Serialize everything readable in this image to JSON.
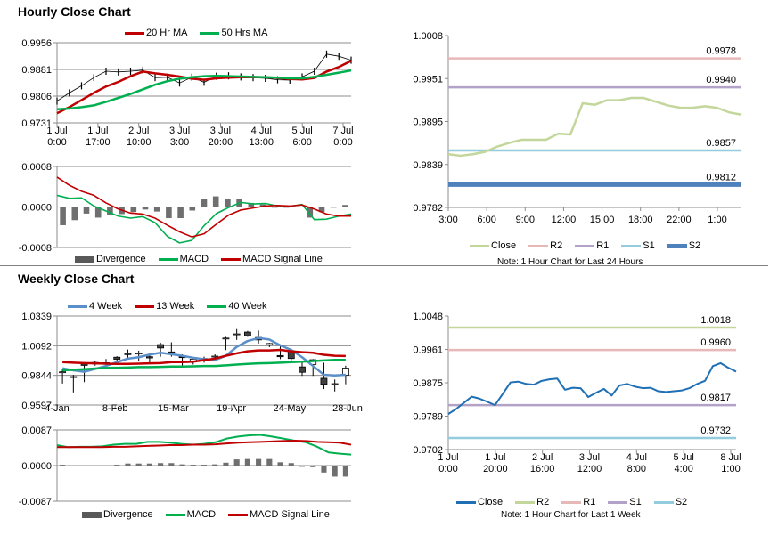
{
  "sections": {
    "hourly_title": "Hourly Close Chart",
    "weekly_title": "Weekly Close Chart"
  },
  "chart_data": [
    {
      "id": "hourly-price",
      "type": "candlestick+line",
      "ylim": [
        0.9731,
        0.9956
      ],
      "yticks": [
        "0.9956",
        "0.9881",
        "0.9806",
        "0.9731"
      ],
      "grid": true,
      "xticks": [
        [
          "1 Jul",
          "0:00"
        ],
        [
          "1 Jul",
          "17:00"
        ],
        [
          "2 Jul",
          "10:00"
        ],
        [
          "3 Jul",
          "3:00"
        ],
        [
          "3 Jul",
          "20:00"
        ],
        [
          "4 Jul",
          "13:00"
        ],
        [
          "5 Jul",
          "6:00"
        ],
        [
          "7 Jul",
          "0:00"
        ]
      ],
      "legend": [
        {
          "label": "20 Hr MA",
          "color": "#c00000",
          "kind": "line"
        },
        {
          "label": "50 Hrs MA",
          "color": "#00b050",
          "kind": "line"
        }
      ],
      "close": [
        0.9792,
        0.9815,
        0.9835,
        0.9858,
        0.9876,
        0.9874,
        0.9876,
        0.9879,
        0.9858,
        0.9859,
        0.9843,
        0.9859,
        0.9845,
        0.9862,
        0.9863,
        0.986,
        0.9858,
        0.9856,
        0.9852,
        0.9851,
        0.986,
        0.9876,
        0.9924,
        0.9918,
        0.9907
      ],
      "series": [
        {
          "name": "20 Hr MA",
          "color": "#c00000",
          "width": 2.5,
          "values": [
            0.9758,
            0.9775,
            0.9795,
            0.9815,
            0.9833,
            0.9846,
            0.9862,
            0.9875,
            0.987,
            0.9866,
            0.9861,
            0.9855,
            0.9852,
            0.9856,
            0.9858,
            0.9859,
            0.9859,
            0.9859,
            0.9857,
            0.9854,
            0.9853,
            0.9857,
            0.9875,
            0.9888,
            0.9905
          ]
        },
        {
          "name": "50 Hrs MA",
          "color": "#00b050",
          "width": 2.5,
          "values": [
            0.9769,
            0.9771,
            0.9775,
            0.978,
            0.979,
            0.9801,
            0.9812,
            0.9825,
            0.9838,
            0.9848,
            0.9855,
            0.9859,
            0.9862,
            0.9863,
            0.9862,
            0.9861,
            0.986,
            0.9859,
            0.9858,
            0.9856,
            0.9856,
            0.986,
            0.9866,
            0.9872,
            0.9878
          ]
        }
      ]
    },
    {
      "id": "hourly-macd",
      "type": "line+bar",
      "ylim": [
        -0.0008,
        0.0008
      ],
      "yticks": [
        "0.0008",
        "0.0000",
        "-0.0008"
      ],
      "grid": true,
      "legend": [
        {
          "label": "Divergence",
          "color": "#595959",
          "kind": "bar"
        },
        {
          "label": "MACD",
          "color": "#00b050",
          "kind": "line"
        },
        {
          "label": "MACD Signal Line",
          "color": "#c00000",
          "kind": "line"
        }
      ],
      "divergence": [
        -0.00036,
        -0.00026,
        -0.00013,
        -0.00021,
        -0.00016,
        -0.00014,
        -0.0001,
        -5e-05,
        -9e-05,
        -0.00022,
        -0.00022,
        -7e-05,
        0.00016,
        0.00021,
        0.00015,
        0.00015,
        8e-05,
        5e-05,
        -1e-05,
        -1e-05,
        1e-05,
        -0.00021,
        -0.0001,
        0,
        4e-05
      ],
      "series": [
        {
          "name": "MACD",
          "color": "#00b050",
          "width": 1.6,
          "values": [
            0.00023,
            0.00017,
            0.00018,
            2e-05,
            -8e-05,
            -0.00018,
            -0.00022,
            -0.00019,
            -0.00031,
            -0.00058,
            -0.00071,
            -0.00066,
            -0.00037,
            -0.00013,
            -1e-05,
            9e-05,
            6e-05,
            7e-05,
            2e-05,
            1e-05,
            5e-05,
            -0.00025,
            -0.00024,
            -0.00018,
            -0.00014
          ]
        },
        {
          "name": "MACD Signal Line",
          "color": "#c00000",
          "width": 1.6,
          "values": [
            0.00059,
            0.00043,
            0.00031,
            0.00023,
            8e-05,
            -4e-05,
            -0.00012,
            -0.00014,
            -0.00022,
            -0.00036,
            -0.00049,
            -0.00059,
            -0.00053,
            -0.00034,
            -0.00016,
            -6e-05,
            -2e-05,
            2e-05,
            3e-05,
            2e-05,
            4e-05,
            -4e-05,
            -0.00014,
            -0.00018,
            -0.00018
          ]
        }
      ]
    },
    {
      "id": "last-24-hours",
      "type": "line",
      "ylim": [
        0.9782,
        1.0008
      ],
      "yticks": [
        "1.0008",
        "0.9951",
        "0.9895",
        "0.9839",
        "0.9782"
      ],
      "grid": false,
      "xticks": [
        [
          "3:00"
        ],
        [
          "6:00"
        ],
        [
          "9:00"
        ],
        [
          "12:00"
        ],
        [
          "15:00"
        ],
        [
          "18:00"
        ],
        [
          "22:00"
        ],
        [
          "1:00"
        ]
      ],
      "legend": [
        {
          "label": "Close",
          "color": "#c3d69b",
          "kind": "line"
        },
        {
          "label": "R2",
          "color": "#e6b9b8",
          "kind": "line"
        },
        {
          "label": "R1",
          "color": "#b3a2c7",
          "kind": "line"
        },
        {
          "label": "S1",
          "color": "#93cddd",
          "kind": "line"
        },
        {
          "label": "S2",
          "color": "#4f81bd",
          "kind": "thick"
        }
      ],
      "levels": [
        {
          "name": "R2",
          "value": 0.9978,
          "label": "0.9978",
          "color": "#e6b9b8",
          "width": 2.5
        },
        {
          "name": "R1",
          "value": 0.994,
          "label": "0.9940",
          "color": "#b3a2c7",
          "width": 2.5
        },
        {
          "name": "S1",
          "value": 0.9857,
          "label": "0.9857",
          "color": "#93cddd",
          "width": 2.5
        },
        {
          "name": "S2",
          "value": 0.9812,
          "label": "0.9812",
          "color": "#4f81bd",
          "width": 5
        }
      ],
      "series": [
        {
          "name": "Close",
          "color": "#c3d69b",
          "width": 2.5,
          "values": [
            0.9852,
            0.985,
            0.9852,
            0.9855,
            0.9862,
            0.9867,
            0.9871,
            0.9871,
            0.9871,
            0.9879,
            0.9878,
            0.9919,
            0.9917,
            0.9923,
            0.9923,
            0.9926,
            0.9926,
            0.9921,
            0.9916,
            0.9913,
            0.9913,
            0.9915,
            0.9913,
            0.9907,
            0.9904
          ]
        }
      ],
      "note": "Note: 1 Hour Chart for Last 24 Hours"
    },
    {
      "id": "weekly-price",
      "type": "candlestick+line",
      "ylim": [
        0.9597,
        1.0339
      ],
      "yticks": [
        "1.0339",
        "1.0092",
        "0.9844",
        "0.9597"
      ],
      "grid": true,
      "xticks": [
        [
          "4-Jan"
        ],
        [
          "8-Feb"
        ],
        [
          "15-Mar"
        ],
        [
          "19-Apr"
        ],
        [
          "24-May"
        ],
        [
          "28-Jun"
        ]
      ],
      "legend": [
        {
          "label": "4 Week",
          "color": "#5b8fc9",
          "kind": "line"
        },
        {
          "label": "13 Week",
          "color": "#c00000",
          "kind": "line"
        },
        {
          "label": "40 Week",
          "color": "#00b050",
          "kind": "line"
        }
      ],
      "candles": [
        [
          0.987,
          0.9898,
          0.9776,
          0.9874
        ],
        [
          0.9834,
          0.9849,
          0.9702,
          0.9832
        ],
        [
          0.9932,
          0.9947,
          0.9788,
          0.9935
        ],
        [
          0.9952,
          0.9964,
          0.9925,
          0.994
        ],
        [
          0.994,
          0.9981,
          0.9925,
          0.995
        ],
        [
          0.9996,
          1.0004,
          0.996,
          0.9979
        ],
        [
          1.002,
          1.006,
          0.9992,
          1.0025
        ],
        [
          1.003,
          1.005,
          0.996,
          1.003
        ],
        [
          1.0,
          1.002,
          0.995,
          0.999
        ],
        [
          1.0101,
          1.0117,
          1.0,
          1.0073
        ],
        [
          1.004,
          1.012,
          1.0,
          1.003
        ],
        [
          1.0,
          1.002,
          0.9922,
          0.9995
        ],
        [
          0.9965,
          0.9985,
          0.9935,
          0.998
        ],
        [
          0.9975,
          1.0,
          0.995,
          0.9985
        ],
        [
          1.0005,
          1.002,
          0.999,
          1.0005
        ],
        [
          1.0155,
          1.0165,
          1.0055,
          1.0155
        ],
        [
          1.019,
          1.023,
          1.014,
          1.019
        ],
        [
          1.0205,
          1.0215,
          1.0165,
          1.0175
        ],
        [
          1.016,
          1.0218,
          1.011,
          1.014
        ],
        [
          1.0097,
          1.0115,
          1.008,
          1.011
        ],
        [
          1.001,
          1.01,
          0.998,
          1.0
        ],
        [
          1.005,
          1.006,
          0.997,
          0.9985
        ],
        [
          0.9915,
          0.9965,
          0.984,
          0.987
        ],
        [
          0.9935,
          0.998,
          0.984,
          0.9975
        ],
        [
          0.982,
          0.995,
          0.973,
          0.977
        ],
        [
          0.9775,
          0.981,
          0.971,
          0.9775
        ],
        [
          0.9845,
          0.9925,
          0.977,
          0.9905
        ]
      ],
      "series": [
        {
          "name": "4 Week",
          "color": "#5b8fc9",
          "width": 2.5,
          "values": [
            0.9903,
            0.9886,
            0.9874,
            0.9898,
            0.9923,
            0.9955,
            0.9984,
            0.9996,
            1.0018,
            1.0033,
            1.0021,
            1.0008,
            0.9991,
            0.9979,
            0.9972,
            1.0008,
            1.0082,
            1.0131,
            1.0155,
            1.0143,
            1.0094,
            1.0057,
            0.9996,
            0.9923,
            0.9849,
            0.9844,
            0.9849
          ]
        },
        {
          "name": "13 Week",
          "color": "#c00000",
          "width": 2.5,
          "values": [
            0.9955,
            0.995,
            0.9947,
            0.9945,
            0.9942,
            0.994,
            0.994,
            0.9942,
            0.9945,
            0.9947,
            0.9955,
            0.9955,
            0.9959,
            0.9972,
            0.9984,
            1.0008,
            1.0028,
            1.0045,
            1.0052,
            1.0052,
            1.0057,
            1.0045,
            1.0038,
            1.0033,
            1.0016,
            1.0008,
            1.0006
          ]
        },
        {
          "name": "40 Week",
          "color": "#00b050",
          "width": 2.5,
          "values": [
            0.9886,
            0.9891,
            0.9896,
            0.9901,
            0.9906,
            0.9908,
            0.991,
            0.9913,
            0.9913,
            0.9915,
            0.9918,
            0.9918,
            0.992,
            0.9923,
            0.9923,
            0.9928,
            0.9935,
            0.994,
            0.9945,
            0.9947,
            0.995,
            0.9955,
            0.9959,
            0.9964,
            0.9969,
            0.9974,
            0.9974
          ]
        }
      ]
    },
    {
      "id": "weekly-macd",
      "type": "line+bar",
      "ylim": [
        -0.0087,
        0.0087
      ],
      "yticks": [
        "0.0087",
        "0.0000",
        "-0.0087"
      ],
      "grid": true,
      "legend": [
        {
          "label": "Divergence",
          "color": "#595959",
          "kind": "bar"
        },
        {
          "label": "MACD",
          "color": "#00b050",
          "kind": "line"
        },
        {
          "label": "MACD Signal Line",
          "color": "#c00000",
          "kind": "line"
        }
      ],
      "divergence": [
        0.0002,
        0,
        0,
        0,
        0,
        0.0002,
        0.0005,
        0.0005,
        0.0005,
        0.0006,
        0.0006,
        0.0003,
        0.0002,
        0.0002,
        0.0003,
        0.0007,
        0.0015,
        0.0016,
        0.0016,
        0.0016,
        0.0008,
        0.0006,
        -0.0003,
        -0.0004,
        -0.0017,
        -0.0027,
        -0.0027
      ],
      "series": [
        {
          "name": "MACD",
          "color": "#00b050",
          "width": 2,
          "values": [
            0.005,
            0.0045,
            0.0046,
            0.0046,
            0.0047,
            0.0051,
            0.0053,
            0.0053,
            0.0058,
            0.0058,
            0.0056,
            0.0053,
            0.0051,
            0.0053,
            0.0057,
            0.0066,
            0.0071,
            0.0074,
            0.0075,
            0.0071,
            0.0066,
            0.0061,
            0.0057,
            0.0046,
            0.0032,
            0.0029,
            0.0027
          ]
        },
        {
          "name": "MACD Signal Line",
          "color": "#c00000",
          "width": 2,
          "values": [
            0.0045,
            0.0045,
            0.0045,
            0.0045,
            0.0045,
            0.0046,
            0.0046,
            0.0047,
            0.0048,
            0.0049,
            0.005,
            0.005,
            0.0051,
            0.0051,
            0.0052,
            0.0054,
            0.0056,
            0.0057,
            0.0058,
            0.0059,
            0.006,
            0.0061,
            0.006,
            0.0058,
            0.0057,
            0.0056,
            0.0051
          ]
        }
      ]
    },
    {
      "id": "last-1-week",
      "type": "line",
      "ylim": [
        0.9702,
        1.0048
      ],
      "yticks": [
        "1.0048",
        "0.9961",
        "0.9875",
        "0.9789",
        "0.9702"
      ],
      "grid": false,
      "xticks": [
        [
          "1 Jul",
          "0:00"
        ],
        [
          "1 Jul",
          "20:00"
        ],
        [
          "2 Jul",
          "16:00"
        ],
        [
          "3 Jul",
          "12:00"
        ],
        [
          "4 Jul",
          "8:00"
        ],
        [
          "5 Jul",
          "4:00"
        ],
        [
          "8 Jul",
          "1:00"
        ]
      ],
      "legend": [
        {
          "label": "Close",
          "color": "#1f6fb5",
          "kind": "line"
        },
        {
          "label": "R2",
          "color": "#c3d69b",
          "kind": "line"
        },
        {
          "label": "R1",
          "color": "#e6b9b8",
          "kind": "line"
        },
        {
          "label": "S1",
          "color": "#b3a2c7",
          "kind": "line"
        },
        {
          "label": "S2",
          "color": "#93cddd",
          "kind": "line"
        }
      ],
      "levels": [
        {
          "name": "R2",
          "value": 1.0018,
          "label": "1.0018",
          "color": "#c3d69b",
          "width": 2.5
        },
        {
          "name": "R1",
          "value": 0.996,
          "label": "0.9960",
          "color": "#e6b9b8",
          "width": 2.5
        },
        {
          "name": "S1",
          "value": 0.9817,
          "label": "0.9817",
          "color": "#b3a2c7",
          "width": 2.5
        },
        {
          "name": "S2",
          "value": 0.9732,
          "label": "0.9732",
          "color": "#93cddd",
          "width": 2.5
        }
      ],
      "series": [
        {
          "name": "Close",
          "color": "#1f6fb5",
          "width": 2,
          "values": [
            0.9794,
            0.9807,
            0.9823,
            0.9839,
            0.9834,
            0.9826,
            0.9817,
            0.9846,
            0.9876,
            0.9878,
            0.9872,
            0.987,
            0.988,
            0.9884,
            0.9886,
            0.9857,
            0.9862,
            0.9861,
            0.9838,
            0.9849,
            0.9859,
            0.9842,
            0.9868,
            0.9872,
            0.9865,
            0.9861,
            0.9862,
            0.9853,
            0.9851,
            0.9853,
            0.9855,
            0.9861,
            0.9872,
            0.988,
            0.9918,
            0.9926,
            0.9914,
            0.9904
          ]
        }
      ],
      "note": "Note: 1 Hour Chart for Last 1 Week"
    }
  ]
}
